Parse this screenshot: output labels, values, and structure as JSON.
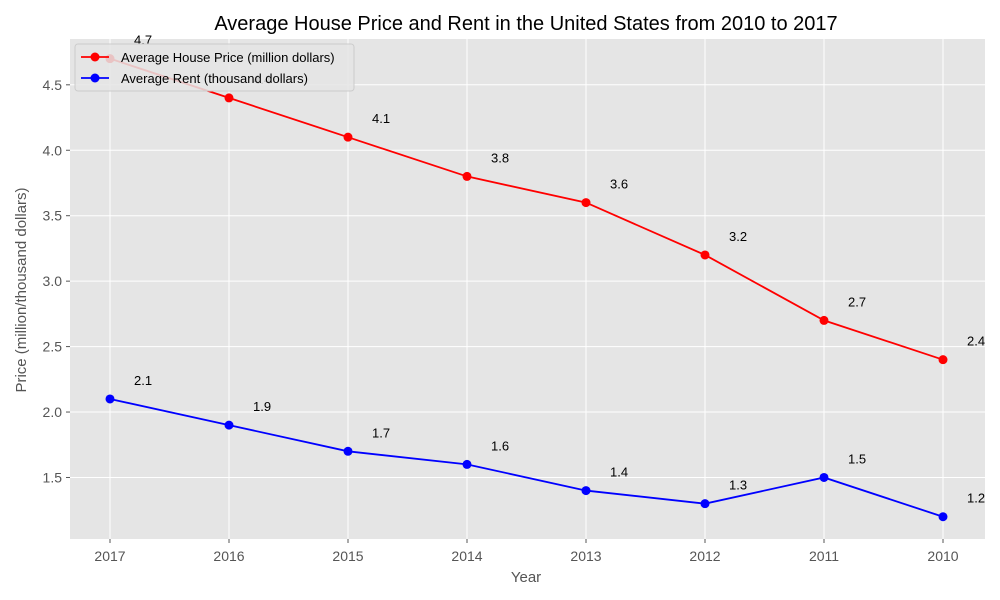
{
  "chart_data": {
    "type": "line",
    "title": "Average House Price and Rent in the United States from 2010 to 2017",
    "xlabel": "Year",
    "ylabel": "Price (million/thousand dollars)",
    "categories": [
      "2017",
      "2016",
      "2015",
      "2014",
      "2013",
      "2012",
      "2011",
      "2010"
    ],
    "ylim": [
      1.03,
      4.85
    ],
    "yticks": [
      "1.5",
      "2.0",
      "2.5",
      "3.0",
      "3.5",
      "4.0",
      "4.5"
    ],
    "grid": true,
    "legend_position": "top-left",
    "series": [
      {
        "name": "Average House Price (million dollars)",
        "color": "#ff0000",
        "values": [
          4.7,
          4.4,
          4.1,
          3.8,
          3.6,
          3.2,
          2.7,
          2.4
        ]
      },
      {
        "name": "Average Rent (thousand dollars)",
        "color": "#0000ff",
        "values": [
          2.1,
          1.9,
          1.7,
          1.6,
          1.4,
          1.3,
          1.5,
          1.2
        ]
      }
    ],
    "background": "#e5e5e5"
  }
}
